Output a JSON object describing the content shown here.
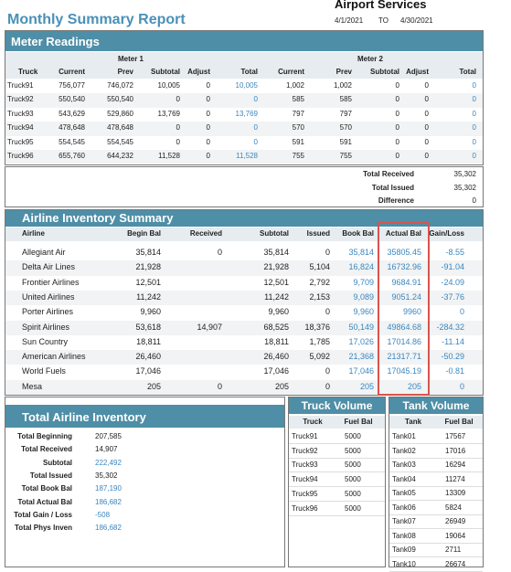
{
  "header": {
    "title": "Monthly Summary Report",
    "company": "Airport Services",
    "date_from": "4/1/2021",
    "to": "TO",
    "date_to": "4/30/2021"
  },
  "meter_readings": {
    "title": "Meter Readings",
    "groups": [
      "Meter 1",
      "Meter 2"
    ],
    "columns": [
      "Truck",
      "Current",
      "Prev",
      "Subtotal",
      "Adjust",
      "Total",
      "Current",
      "Prev",
      "Subtotal",
      "Adjust",
      "Total"
    ],
    "rows": [
      [
        "Truck91",
        "756,077",
        "746,072",
        "10,005",
        "0",
        "10,005",
        "1,002",
        "1,002",
        "0",
        "0",
        "0"
      ],
      [
        "Truck92",
        "550,540",
        "550,540",
        "0",
        "0",
        "0",
        "585",
        "585",
        "0",
        "0",
        "0"
      ],
      [
        "Truck93",
        "543,629",
        "529,860",
        "13,769",
        "0",
        "13,769",
        "797",
        "797",
        "0",
        "0",
        "0"
      ],
      [
        "Truck94",
        "478,648",
        "478,648",
        "0",
        "0",
        "0",
        "570",
        "570",
        "0",
        "0",
        "0"
      ],
      [
        "Truck95",
        "554,545",
        "554,545",
        "0",
        "0",
        "0",
        "591",
        "591",
        "0",
        "0",
        "0"
      ],
      [
        "Truck96",
        "655,760",
        "644,232",
        "11,528",
        "0",
        "11,528",
        "755",
        "755",
        "0",
        "0",
        "0"
      ]
    ]
  },
  "totals": {
    "rows": [
      [
        "Total Received",
        "35,302"
      ],
      [
        "Total Issued",
        "35,302"
      ],
      [
        "Difference",
        "0"
      ]
    ]
  },
  "airline_inventory": {
    "title": "Airline Inventory Summary",
    "columns": [
      "Airline",
      "Begin Bal",
      "Received",
      "Subtotal",
      "Issued",
      "Book Bal",
      "Actual Bal",
      "Gain/Loss"
    ],
    "rows": [
      [
        "Allegiant Air",
        "35,814",
        "0",
        "35,814",
        "0",
        "35,814",
        "35805.45",
        "-8.55"
      ],
      [
        "Delta Air Lines",
        "21,928",
        null,
        "21,928",
        "5,104",
        "16,824",
        "16732.96",
        "-91.04"
      ],
      [
        "Frontier Airlines",
        "12,501",
        null,
        "12,501",
        "2,792",
        "9,709",
        "9684.91",
        "-24.09"
      ],
      [
        "United Airlines",
        "11,242",
        null,
        "11,242",
        "2,153",
        "9,089",
        "9051.24",
        "-37.76"
      ],
      [
        "Porter Airlines",
        "9,960",
        null,
        "9,960",
        "0",
        "9,960",
        "9960",
        "0"
      ],
      [
        "Spirit Airlines",
        "53,618",
        "14,907",
        "68,525",
        "18,376",
        "50,149",
        "49864.68",
        "-284.32"
      ],
      [
        "Sun Country",
        "18,811",
        null,
        "18,811",
        "1,785",
        "17,026",
        "17014.86",
        "-11.14"
      ],
      [
        "American Airlines",
        "26,460",
        null,
        "26,460",
        "5,092",
        "21,368",
        "21317.71",
        "-50.29"
      ],
      [
        "World Fuels",
        "17,046",
        null,
        "17,046",
        "0",
        "17,046",
        "17045.19",
        "-0.81"
      ],
      [
        "Mesa",
        "205",
        "0",
        "205",
        "0",
        "205",
        "205",
        "0"
      ]
    ]
  },
  "total_inventory": {
    "title": "Total Airline Inventory",
    "rows": [
      [
        "Total Beginning",
        "207,585"
      ],
      [
        "Total Received",
        "14,907"
      ],
      [
        "Subtotal",
        "222,492"
      ],
      [
        "Total Issued",
        "35,302"
      ],
      [
        "Total Book Bal",
        "187,190"
      ],
      [
        "Total Actual Bal",
        "186,682"
      ],
      [
        "Total Gain / Loss",
        "-508"
      ],
      [
        "Total Phys Inven",
        "186,682"
      ]
    ]
  },
  "truck_volume": {
    "title": "Truck Volume",
    "columns": [
      "Truck",
      "Fuel Bal"
    ],
    "rows": [
      [
        "Truck91",
        "5000"
      ],
      [
        "Truck92",
        "5000"
      ],
      [
        "Truck93",
        "5000"
      ],
      [
        "Truck94",
        "5000"
      ],
      [
        "Truck95",
        "5000"
      ],
      [
        "Truck96",
        "5000"
      ]
    ]
  },
  "tank_volume": {
    "title": "Tank Volume",
    "columns": [
      "Tank",
      "Fuel Bal"
    ],
    "rows": [
      [
        "Tank01",
        "17567"
      ],
      [
        "Tank02",
        "17016"
      ],
      [
        "Tank03",
        "16294"
      ],
      [
        "Tank04",
        "11274"
      ],
      [
        "Tank05",
        "13309"
      ],
      [
        "Tank06",
        "5824"
      ],
      [
        "Tank07",
        "26949"
      ],
      [
        "Tank08",
        "19064"
      ],
      [
        "Tank09",
        "2711"
      ],
      [
        "Tank10",
        "26674"
      ]
    ]
  }
}
